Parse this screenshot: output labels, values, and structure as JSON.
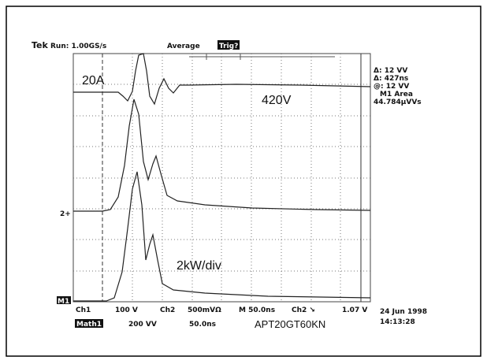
{
  "header": {
    "brand": "Tek",
    "run": "Run: 1.00GS/s",
    "mode": "Average",
    "trigger": "Trig?"
  },
  "readout": [
    "Δ: 12 VV",
    "Δ: 427ns",
    "@: 12 VV",
    "M1 Area",
    "44.784µVVs"
  ],
  "traces": {
    "current": "20A",
    "voltage": "420V",
    "power": "2kW/div",
    "ch2_marker": "2+"
  },
  "footer": {
    "math_marker": "M1",
    "ch1": "Ch1",
    "ch1_scale": "100 V",
    "ch2": "Ch2",
    "ch2_scale": "500mVΩ",
    "timebase": "M 50.0ns",
    "trigger_source": "Ch2 ↘",
    "trigger_level": "1.07 V",
    "date": "24 Jun 1998",
    "time": "14:13:28",
    "math": "Math1",
    "math_scale": "200 VV",
    "math_time": "50.0ns",
    "device": "APT20GT60KN"
  }
}
